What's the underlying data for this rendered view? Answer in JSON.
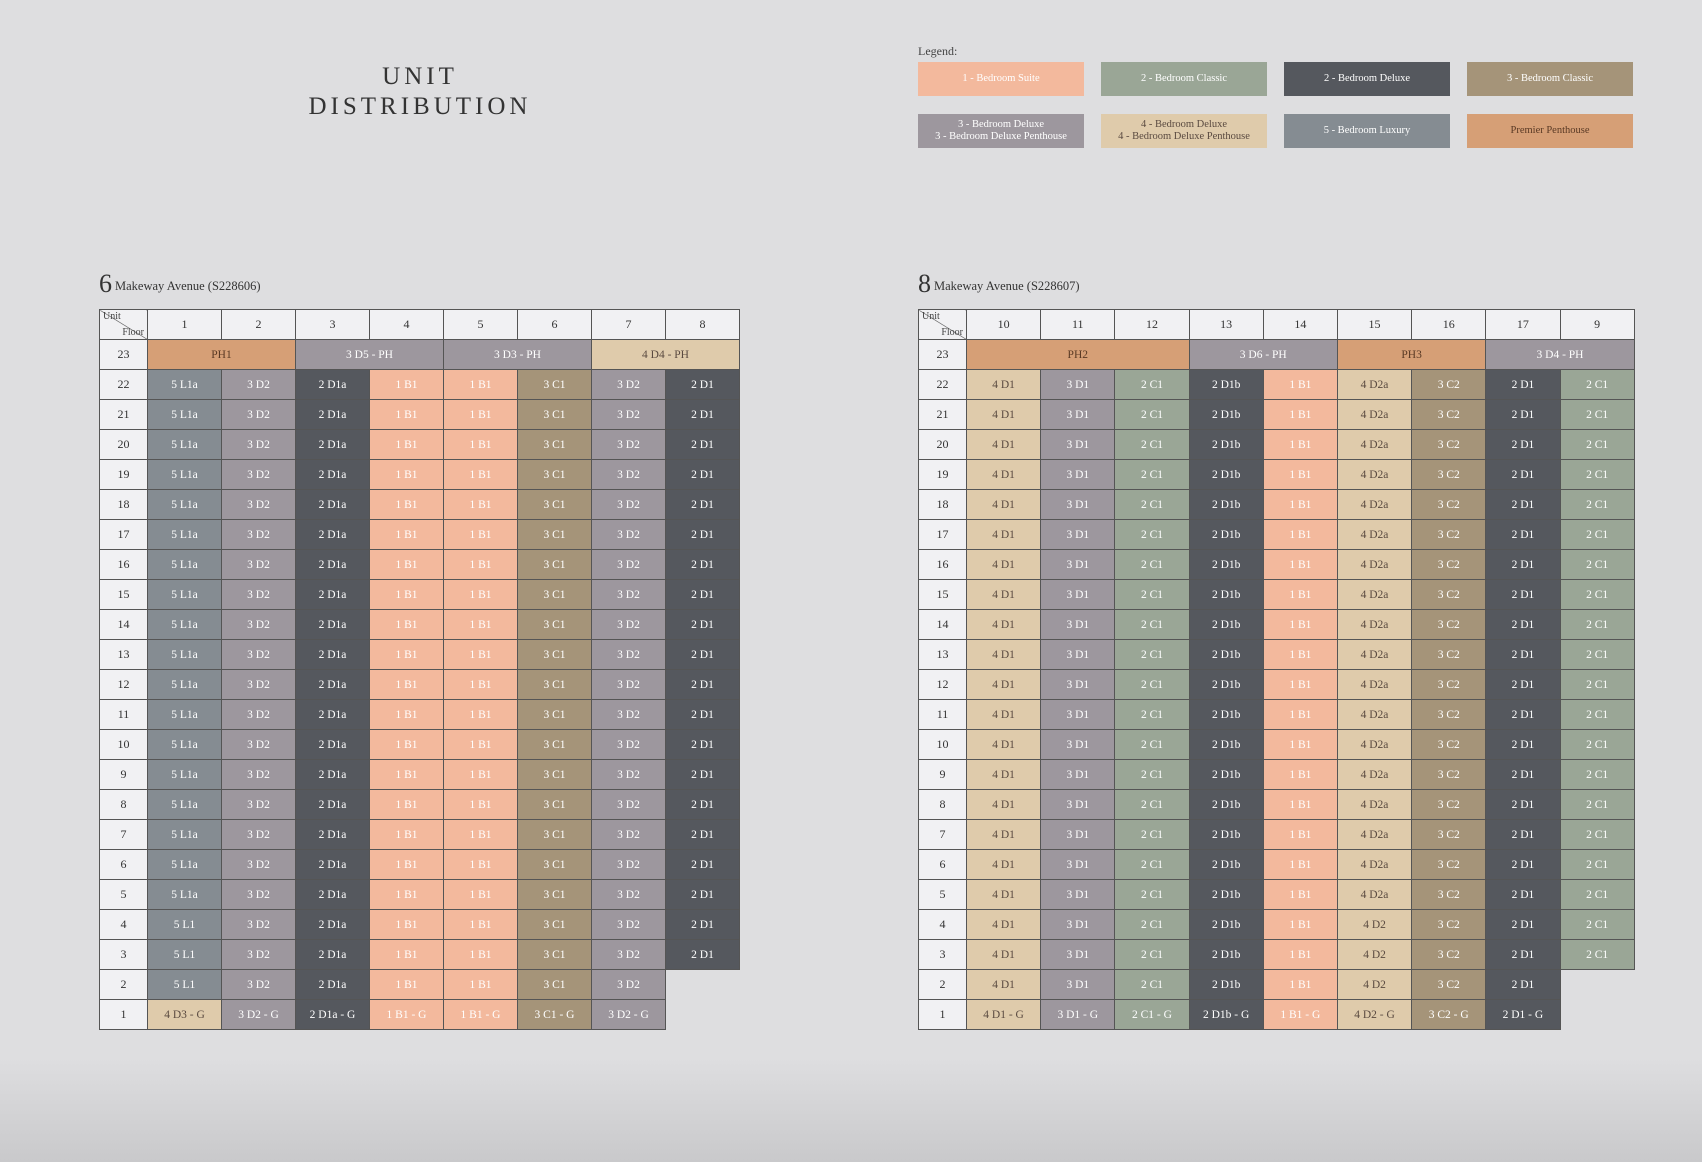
{
  "title": [
    "UNIT",
    "DISTRIBUTION"
  ],
  "legend": {
    "label": "Legend:",
    "items": [
      {
        "lines": [
          "1 - Bedroom Suite"
        ],
        "color": "#f3b99d"
      },
      {
        "lines": [
          "2 - Bedroom Classic"
        ],
        "color": "#9aa696"
      },
      {
        "lines": [
          "2 - Bedroom Deluxe"
        ],
        "color": "#55585e"
      },
      {
        "lines": [
          "3 - Bedroom Classic"
        ],
        "color": "#a59479"
      },
      {
        "lines": [
          "3 - Bedroom Deluxe",
          "3 - Bedroom Deluxe Penthouse"
        ],
        "color": "#9d979e"
      },
      {
        "lines": [
          "4 - Bedroom Deluxe",
          "4 - Bedroom Deluxe Penthouse"
        ],
        "color": "#dfcbab"
      },
      {
        "lines": [
          "5 - Bedroom Luxury"
        ],
        "color": "#858c92"
      },
      {
        "lines": [
          "Premier Penthouse"
        ],
        "color": "#d69f76"
      }
    ]
  },
  "corner": {
    "unit": "Unit",
    "floor": "Floor"
  },
  "blocks": [
    {
      "number": "6",
      "address": "Makeway Avenue (S228606)",
      "units": [
        "1",
        "2",
        "3",
        "4",
        "5",
        "6",
        "7",
        "8"
      ],
      "penthouse": [
        {
          "label": "PH1",
          "span": 2
        },
        {
          "label": "3 D5 - PH",
          "span": 2
        },
        {
          "label": "3 D3 - PH",
          "span": 2
        },
        {
          "label": "4 D4 - PH",
          "span": 2
        }
      ],
      "rows": [
        {
          "floor": "22",
          "cells": [
            "5 L1a",
            "3 D2",
            "2 D1a",
            "1 B1",
            "1 B1",
            "3 C1",
            "3 D2",
            "2 D1"
          ]
        },
        {
          "floor": "21",
          "cells": [
            "5 L1a",
            "3 D2",
            "2 D1a",
            "1 B1",
            "1 B1",
            "3 C1",
            "3 D2",
            "2 D1"
          ]
        },
        {
          "floor": "20",
          "cells": [
            "5 L1a",
            "3 D2",
            "2 D1a",
            "1 B1",
            "1 B1",
            "3 C1",
            "3 D2",
            "2 D1"
          ]
        },
        {
          "floor": "19",
          "cells": [
            "5 L1a",
            "3 D2",
            "2 D1a",
            "1 B1",
            "1 B1",
            "3 C1",
            "3 D2",
            "2 D1"
          ]
        },
        {
          "floor": "18",
          "cells": [
            "5 L1a",
            "3 D2",
            "2 D1a",
            "1 B1",
            "1 B1",
            "3 C1",
            "3 D2",
            "2 D1"
          ]
        },
        {
          "floor": "17",
          "cells": [
            "5 L1a",
            "3 D2",
            "2 D1a",
            "1 B1",
            "1 B1",
            "3 C1",
            "3 D2",
            "2 D1"
          ]
        },
        {
          "floor": "16",
          "cells": [
            "5 L1a",
            "3 D2",
            "2 D1a",
            "1 B1",
            "1 B1",
            "3 C1",
            "3 D2",
            "2 D1"
          ]
        },
        {
          "floor": "15",
          "cells": [
            "5 L1a",
            "3 D2",
            "2 D1a",
            "1 B1",
            "1 B1",
            "3 C1",
            "3 D2",
            "2 D1"
          ]
        },
        {
          "floor": "14",
          "cells": [
            "5 L1a",
            "3 D2",
            "2 D1a",
            "1 B1",
            "1 B1",
            "3 C1",
            "3 D2",
            "2 D1"
          ]
        },
        {
          "floor": "13",
          "cells": [
            "5 L1a",
            "3 D2",
            "2 D1a",
            "1 B1",
            "1 B1",
            "3 C1",
            "3 D2",
            "2 D1"
          ]
        },
        {
          "floor": "12",
          "cells": [
            "5 L1a",
            "3 D2",
            "2 D1a",
            "1 B1",
            "1 B1",
            "3 C1",
            "3 D2",
            "2 D1"
          ]
        },
        {
          "floor": "11",
          "cells": [
            "5 L1a",
            "3 D2",
            "2 D1a",
            "1 B1",
            "1 B1",
            "3 C1",
            "3 D2",
            "2 D1"
          ]
        },
        {
          "floor": "10",
          "cells": [
            "5 L1a",
            "3 D2",
            "2 D1a",
            "1 B1",
            "1 B1",
            "3 C1",
            "3 D2",
            "2 D1"
          ]
        },
        {
          "floor": "9",
          "cells": [
            "5 L1a",
            "3 D2",
            "2 D1a",
            "1 B1",
            "1 B1",
            "3 C1",
            "3 D2",
            "2 D1"
          ]
        },
        {
          "floor": "8",
          "cells": [
            "5 L1a",
            "3 D2",
            "2 D1a",
            "1 B1",
            "1 B1",
            "3 C1",
            "3 D2",
            "2 D1"
          ]
        },
        {
          "floor": "7",
          "cells": [
            "5 L1a",
            "3 D2",
            "2 D1a",
            "1 B1",
            "1 B1",
            "3 C1",
            "3 D2",
            "2 D1"
          ]
        },
        {
          "floor": "6",
          "cells": [
            "5 L1a",
            "3 D2",
            "2 D1a",
            "1 B1",
            "1 B1",
            "3 C1",
            "3 D2",
            "2 D1"
          ]
        },
        {
          "floor": "5",
          "cells": [
            "5 L1a",
            "3 D2",
            "2 D1a",
            "1 B1",
            "1 B1",
            "3 C1",
            "3 D2",
            "2 D1"
          ]
        },
        {
          "floor": "4",
          "cells": [
            "5 L1",
            "3 D2",
            "2 D1a",
            "1 B1",
            "1 B1",
            "3 C1",
            "3 D2",
            "2 D1"
          ]
        },
        {
          "floor": "3",
          "cells": [
            "5 L1",
            "3 D2",
            "2 D1a",
            "1 B1",
            "1 B1",
            "3 C1",
            "3 D2",
            "2 D1"
          ]
        },
        {
          "floor": "2",
          "cells": [
            "5 L1",
            "3 D2",
            "2 D1a",
            "1 B1",
            "1 B1",
            "3 C1",
            "3 D2"
          ]
        },
        {
          "floor": "1",
          "cells": [
            "4 D3 - G",
            "3 D2 - G",
            "2 D1a - G",
            "1 B1 - G",
            "1 B1 - G",
            "3 C1 - G",
            "3 D2 - G"
          ]
        }
      ]
    },
    {
      "number": "8",
      "address": "Makeway Avenue (S228607)",
      "units": [
        "10",
        "11",
        "12",
        "13",
        "14",
        "15",
        "16",
        "17",
        "9"
      ],
      "penthouse": [
        {
          "label": "PH2",
          "span": 3
        },
        {
          "label": "3 D6 - PH",
          "span": 2
        },
        {
          "label": "PH3",
          "span": 2
        },
        {
          "label": "3 D4 - PH",
          "span": 2
        }
      ],
      "rows": [
        {
          "floor": "22",
          "cells": [
            "4 D1",
            "3 D1",
            "2 C1",
            "2 D1b",
            "1 B1",
            "4 D2a",
            "3 C2",
            "2 D1",
            "2 C1"
          ]
        },
        {
          "floor": "21",
          "cells": [
            "4 D1",
            "3 D1",
            "2 C1",
            "2 D1b",
            "1 B1",
            "4 D2a",
            "3 C2",
            "2 D1",
            "2 C1"
          ]
        },
        {
          "floor": "20",
          "cells": [
            "4 D1",
            "3 D1",
            "2 C1",
            "2 D1b",
            "1 B1",
            "4 D2a",
            "3 C2",
            "2 D1",
            "2 C1"
          ]
        },
        {
          "floor": "19",
          "cells": [
            "4 D1",
            "3 D1",
            "2 C1",
            "2 D1b",
            "1 B1",
            "4 D2a",
            "3 C2",
            "2 D1",
            "2 C1"
          ]
        },
        {
          "floor": "18",
          "cells": [
            "4 D1",
            "3 D1",
            "2 C1",
            "2 D1b",
            "1 B1",
            "4 D2a",
            "3 C2",
            "2 D1",
            "2 C1"
          ]
        },
        {
          "floor": "17",
          "cells": [
            "4 D1",
            "3 D1",
            "2 C1",
            "2 D1b",
            "1 B1",
            "4 D2a",
            "3 C2",
            "2 D1",
            "2 C1"
          ]
        },
        {
          "floor": "16",
          "cells": [
            "4 D1",
            "3 D1",
            "2 C1",
            "2 D1b",
            "1 B1",
            "4 D2a",
            "3 C2",
            "2 D1",
            "2 C1"
          ]
        },
        {
          "floor": "15",
          "cells": [
            "4 D1",
            "3 D1",
            "2 C1",
            "2 D1b",
            "1 B1",
            "4 D2a",
            "3 C2",
            "2 D1",
            "2 C1"
          ]
        },
        {
          "floor": "14",
          "cells": [
            "4 D1",
            "3 D1",
            "2 C1",
            "2 D1b",
            "1 B1",
            "4 D2a",
            "3 C2",
            "2 D1",
            "2 C1"
          ]
        },
        {
          "floor": "13",
          "cells": [
            "4 D1",
            "3 D1",
            "2 C1",
            "2 D1b",
            "1 B1",
            "4 D2a",
            "3 C2",
            "2 D1",
            "2 C1"
          ]
        },
        {
          "floor": "12",
          "cells": [
            "4 D1",
            "3 D1",
            "2 C1",
            "2 D1b",
            "1 B1",
            "4 D2a",
            "3 C2",
            "2 D1",
            "2 C1"
          ]
        },
        {
          "floor": "11",
          "cells": [
            "4 D1",
            "3 D1",
            "2 C1",
            "2 D1b",
            "1 B1",
            "4 D2a",
            "3 C2",
            "2 D1",
            "2 C1"
          ]
        },
        {
          "floor": "10",
          "cells": [
            "4 D1",
            "3 D1",
            "2 C1",
            "2 D1b",
            "1 B1",
            "4 D2a",
            "3 C2",
            "2 D1",
            "2 C1"
          ]
        },
        {
          "floor": "9",
          "cells": [
            "4 D1",
            "3 D1",
            "2 C1",
            "2 D1b",
            "1 B1",
            "4 D2a",
            "3 C2",
            "2 D1",
            "2 C1"
          ]
        },
        {
          "floor": "8",
          "cells": [
            "4 D1",
            "3 D1",
            "2 C1",
            "2 D1b",
            "1 B1",
            "4 D2a",
            "3 C2",
            "2 D1",
            "2 C1"
          ]
        },
        {
          "floor": "7",
          "cells": [
            "4 D1",
            "3 D1",
            "2 C1",
            "2 D1b",
            "1 B1",
            "4 D2a",
            "3 C2",
            "2 D1",
            "2 C1"
          ]
        },
        {
          "floor": "6",
          "cells": [
            "4 D1",
            "3 D1",
            "2 C1",
            "2 D1b",
            "1 B1",
            "4 D2a",
            "3 C2",
            "2 D1",
            "2 C1"
          ]
        },
        {
          "floor": "5",
          "cells": [
            "4 D1",
            "3 D1",
            "2 C1",
            "2 D1b",
            "1 B1",
            "4 D2a",
            "3 C2",
            "2 D1",
            "2 C1"
          ]
        },
        {
          "floor": "4",
          "cells": [
            "4 D1",
            "3 D1",
            "2 C1",
            "2 D1b",
            "1 B1",
            "4 D2",
            "3 C2",
            "2 D1",
            "2 C1"
          ]
        },
        {
          "floor": "3",
          "cells": [
            "4 D1",
            "3 D1",
            "2 C1",
            "2 D1b",
            "1 B1",
            "4 D2",
            "3 C2",
            "2 D1",
            "2 C1"
          ]
        },
        {
          "floor": "2",
          "cells": [
            "4 D1",
            "3 D1",
            "2 C1",
            "2 D1b",
            "1 B1",
            "4 D2",
            "3 C2",
            "2 D1"
          ]
        },
        {
          "floor": "1",
          "cells": [
            "4 D1 - G",
            "3 D1 - G",
            "2 C1 - G",
            "2 D1b - G",
            "1 B1 - G",
            "4 D2 - G",
            "3 C2 - G",
            "2 D1 - G"
          ]
        }
      ]
    }
  ]
}
